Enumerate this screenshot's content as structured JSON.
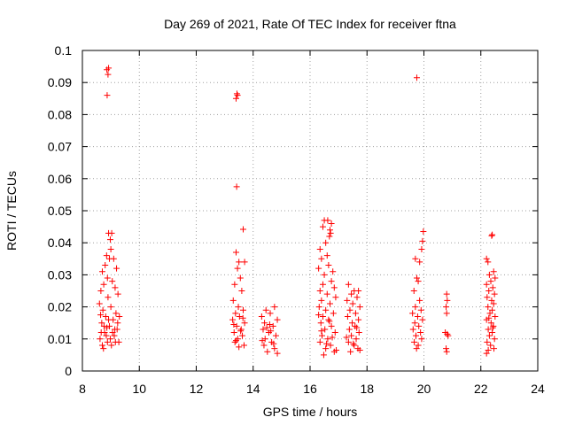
{
  "chart_data": {
    "type": "scatter",
    "title": "Day 269 of 2021, Rate Of TEC Index for receiver ftna",
    "xlabel": "GPS time / hours",
    "ylabel": "ROTI / TECUs",
    "xlim": [
      8,
      24
    ],
    "ylim": [
      0,
      0.1
    ],
    "xticks": [
      8,
      10,
      12,
      14,
      16,
      18,
      20,
      22,
      24
    ],
    "yticks": [
      0,
      0.01,
      0.02,
      0.03,
      0.04,
      0.05,
      0.06,
      0.07,
      0.08,
      0.09,
      0.1
    ],
    "xtick_labels": [
      "8",
      "10",
      "12",
      "14",
      "16",
      "18",
      "20",
      "22",
      "24"
    ],
    "ytick_labels": [
      "0",
      "0.01",
      "0.02",
      "0.03",
      "0.04",
      "0.05",
      "0.06",
      "0.07",
      "0.08",
      "0.09",
      "0.1"
    ],
    "grid": true,
    "marker": "+",
    "series": [
      {
        "name": "ROTI",
        "color": "#ff0000",
        "points": [
          [
            8.86,
            0.094
          ],
          [
            8.92,
            0.0945
          ],
          [
            8.9,
            0.0925
          ],
          [
            8.87,
            0.086
          ],
          [
            8.92,
            0.043
          ],
          [
            9.03,
            0.043
          ],
          [
            8.98,
            0.041
          ],
          [
            9.0,
            0.038
          ],
          [
            8.85,
            0.036
          ],
          [
            8.95,
            0.035
          ],
          [
            9.1,
            0.035
          ],
          [
            8.8,
            0.033
          ],
          [
            9.2,
            0.032
          ],
          [
            8.7,
            0.031
          ],
          [
            8.88,
            0.029
          ],
          [
            9.05,
            0.028
          ],
          [
            8.75,
            0.027
          ],
          [
            9.15,
            0.026
          ],
          [
            8.65,
            0.025
          ],
          [
            9.25,
            0.024
          ],
          [
            8.9,
            0.023
          ],
          [
            8.6,
            0.021
          ],
          [
            9.0,
            0.02
          ],
          [
            8.72,
            0.019
          ],
          [
            9.18,
            0.018
          ],
          [
            8.82,
            0.017
          ],
          [
            9.08,
            0.016
          ],
          [
            8.68,
            0.015
          ],
          [
            8.95,
            0.014
          ],
          [
            9.22,
            0.013
          ],
          [
            8.78,
            0.012
          ],
          [
            9.12,
            0.011
          ],
          [
            8.62,
            0.01
          ],
          [
            8.88,
            0.009
          ],
          [
            9.02,
            0.008
          ],
          [
            8.74,
            0.007
          ],
          [
            9.28,
            0.009
          ],
          [
            8.84,
            0.011
          ],
          [
            9.14,
            0.013
          ],
          [
            8.66,
            0.012
          ],
          [
            8.98,
            0.01
          ],
          [
            9.24,
            0.015
          ],
          [
            8.76,
            0.014
          ],
          [
            9.06,
            0.012
          ],
          [
            8.92,
            0.016
          ],
          [
            8.7,
            0.008
          ],
          [
            9.16,
            0.009
          ],
          [
            8.86,
            0.0135
          ],
          [
            9.3,
            0.017
          ],
          [
            8.64,
            0.0175
          ],
          [
            13.43,
            0.0865
          ],
          [
            13.4,
            0.085
          ],
          [
            13.45,
            0.086
          ],
          [
            13.42,
            0.0575
          ],
          [
            13.65,
            0.0442
          ],
          [
            13.4,
            0.037
          ],
          [
            13.5,
            0.034
          ],
          [
            13.7,
            0.034
          ],
          [
            13.45,
            0.032
          ],
          [
            13.55,
            0.029
          ],
          [
            13.35,
            0.027
          ],
          [
            13.6,
            0.025
          ],
          [
            13.3,
            0.022
          ],
          [
            13.48,
            0.02
          ],
          [
            13.65,
            0.019
          ],
          [
            13.38,
            0.018
          ],
          [
            13.52,
            0.017
          ],
          [
            13.28,
            0.016
          ],
          [
            13.7,
            0.015
          ],
          [
            13.42,
            0.014
          ],
          [
            13.58,
            0.013
          ],
          [
            13.33,
            0.012
          ],
          [
            13.62,
            0.011
          ],
          [
            13.46,
            0.01
          ],
          [
            13.36,
            0.009
          ],
          [
            13.68,
            0.008
          ],
          [
            13.5,
            0.0075
          ],
          [
            13.4,
            0.0095
          ],
          [
            13.56,
            0.0125
          ],
          [
            13.32,
            0.0145
          ],
          [
            13.64,
            0.0165
          ],
          [
            14.45,
            0.019
          ],
          [
            14.75,
            0.02
          ],
          [
            14.6,
            0.018
          ],
          [
            14.3,
            0.017
          ],
          [
            14.85,
            0.016
          ],
          [
            14.4,
            0.015
          ],
          [
            14.7,
            0.014
          ],
          [
            14.35,
            0.013
          ],
          [
            14.55,
            0.012
          ],
          [
            14.8,
            0.011
          ],
          [
            14.42,
            0.01
          ],
          [
            14.65,
            0.009
          ],
          [
            14.38,
            0.008
          ],
          [
            14.75,
            0.007
          ],
          [
            14.5,
            0.006
          ],
          [
            14.85,
            0.0055
          ],
          [
            14.32,
            0.0095
          ],
          [
            14.62,
            0.0125
          ],
          [
            14.48,
            0.0135
          ],
          [
            14.72,
            0.0085
          ],
          [
            14.58,
            0.0145
          ],
          [
            16.5,
            0.047
          ],
          [
            16.62,
            0.047
          ],
          [
            16.75,
            0.046
          ],
          [
            16.45,
            0.045
          ],
          [
            16.7,
            0.044
          ],
          [
            16.72,
            0.043
          ],
          [
            16.68,
            0.042
          ],
          [
            16.55,
            0.04
          ],
          [
            16.35,
            0.038
          ],
          [
            16.6,
            0.036
          ],
          [
            16.4,
            0.035
          ],
          [
            16.65,
            0.033
          ],
          [
            16.3,
            0.032
          ],
          [
            16.8,
            0.031
          ],
          [
            16.5,
            0.03
          ],
          [
            16.75,
            0.028
          ],
          [
            16.45,
            0.027
          ],
          [
            16.85,
            0.026
          ],
          [
            16.35,
            0.025
          ],
          [
            16.6,
            0.024
          ],
          [
            16.9,
            0.023
          ],
          [
            16.4,
            0.022
          ],
          [
            16.7,
            0.021
          ],
          [
            16.32,
            0.02
          ],
          [
            16.55,
            0.019
          ],
          [
            16.82,
            0.018
          ],
          [
            16.45,
            0.017
          ],
          [
            16.65,
            0.016
          ],
          [
            16.38,
            0.015
          ],
          [
            16.75,
            0.014
          ],
          [
            16.52,
            0.013
          ],
          [
            16.88,
            0.012
          ],
          [
            16.42,
            0.011
          ],
          [
            16.62,
            0.01
          ],
          [
            16.35,
            0.009
          ],
          [
            16.72,
            0.008
          ],
          [
            16.55,
            0.007
          ],
          [
            16.85,
            0.006
          ],
          [
            16.48,
            0.005
          ],
          [
            16.92,
            0.0065
          ],
          [
            16.58,
            0.0085
          ],
          [
            16.78,
            0.0105
          ],
          [
            16.4,
            0.0125
          ],
          [
            16.68,
            0.0155
          ],
          [
            16.3,
            0.0175
          ],
          [
            17.35,
            0.027
          ],
          [
            17.55,
            0.025
          ],
          [
            17.7,
            0.025
          ],
          [
            17.45,
            0.024
          ],
          [
            17.65,
            0.023
          ],
          [
            17.3,
            0.022
          ],
          [
            17.5,
            0.021
          ],
          [
            17.75,
            0.02
          ],
          [
            17.4,
            0.019
          ],
          [
            17.6,
            0.018
          ],
          [
            17.32,
            0.017
          ],
          [
            17.7,
            0.016
          ],
          [
            17.48,
            0.015
          ],
          [
            17.58,
            0.014
          ],
          [
            17.38,
            0.013
          ],
          [
            17.72,
            0.012
          ],
          [
            17.45,
            0.011
          ],
          [
            17.62,
            0.01
          ],
          [
            17.35,
            0.009
          ],
          [
            17.55,
            0.008
          ],
          [
            17.68,
            0.007
          ],
          [
            17.42,
            0.006
          ],
          [
            17.75,
            0.0065
          ],
          [
            17.52,
            0.0085
          ],
          [
            17.28,
            0.0105
          ],
          [
            17.64,
            0.0135
          ],
          [
            19.75,
            0.0915
          ],
          [
            19.98,
            0.0435
          ],
          [
            19.95,
            0.0405
          ],
          [
            19.92,
            0.038
          ],
          [
            19.7,
            0.035
          ],
          [
            19.85,
            0.034
          ],
          [
            19.75,
            0.029
          ],
          [
            19.8,
            0.028
          ],
          [
            19.65,
            0.025
          ],
          [
            19.85,
            0.022
          ],
          [
            19.7,
            0.02
          ],
          [
            19.9,
            0.019
          ],
          [
            19.6,
            0.018
          ],
          [
            19.78,
            0.017
          ],
          [
            19.95,
            0.016
          ],
          [
            19.68,
            0.015
          ],
          [
            19.82,
            0.014
          ],
          [
            19.62,
            0.013
          ],
          [
            19.88,
            0.012
          ],
          [
            19.72,
            0.011
          ],
          [
            19.92,
            0.01
          ],
          [
            19.66,
            0.009
          ],
          [
            19.8,
            0.008
          ],
          [
            19.74,
            0.007
          ],
          [
            20.8,
            0.024
          ],
          [
            20.82,
            0.022
          ],
          [
            20.78,
            0.02
          ],
          [
            20.8,
            0.018
          ],
          [
            20.75,
            0.012
          ],
          [
            20.82,
            0.0115
          ],
          [
            20.85,
            0.011
          ],
          [
            20.78,
            0.007
          ],
          [
            20.8,
            0.006
          ],
          [
            22.4,
            0.0425
          ],
          [
            22.38,
            0.0422
          ],
          [
            22.2,
            0.035
          ],
          [
            22.25,
            0.034
          ],
          [
            22.45,
            0.031
          ],
          [
            22.3,
            0.03
          ],
          [
            22.5,
            0.029
          ],
          [
            22.35,
            0.028
          ],
          [
            22.2,
            0.027
          ],
          [
            22.42,
            0.026
          ],
          [
            22.28,
            0.025
          ],
          [
            22.48,
            0.024
          ],
          [
            22.22,
            0.023
          ],
          [
            22.38,
            0.022
          ],
          [
            22.45,
            0.021
          ],
          [
            22.25,
            0.02
          ],
          [
            22.4,
            0.019
          ],
          [
            22.32,
            0.018
          ],
          [
            22.5,
            0.017
          ],
          [
            22.2,
            0.016
          ],
          [
            22.36,
            0.015
          ],
          [
            22.44,
            0.014
          ],
          [
            22.26,
            0.013
          ],
          [
            22.4,
            0.012
          ],
          [
            22.3,
            0.011
          ],
          [
            22.48,
            0.01
          ],
          [
            22.22,
            0.009
          ],
          [
            22.34,
            0.008
          ],
          [
            22.46,
            0.007
          ],
          [
            22.26,
            0.0065
          ],
          [
            22.2,
            0.0055
          ],
          [
            22.42,
            0.0135
          ],
          [
            22.28,
            0.0165
          ]
        ]
      }
    ]
  }
}
